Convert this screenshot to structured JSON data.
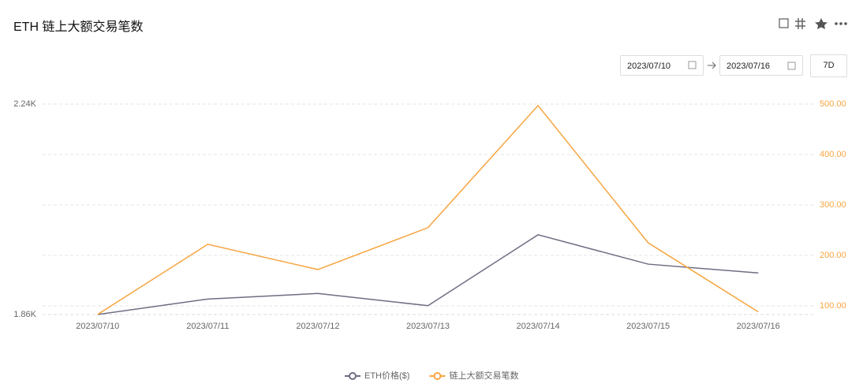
{
  "header": {
    "title": "ETH 链上大额交易笔数"
  },
  "controls": {
    "start_date": "2023/07/10",
    "end_date": "2023/07/16",
    "range_button": "7D"
  },
  "chart_data": {
    "type": "line",
    "categories": [
      "2023/07/10",
      "2023/07/11",
      "2023/07/12",
      "2023/07/13",
      "2023/07/14",
      "2023/07/15",
      "2023/07/16"
    ],
    "series": [
      {
        "name": "ETH价格($)",
        "color": "#6e6d82",
        "values": [
          1860,
          1888,
          1898,
          1876,
          2004,
          1951,
          1935
        ]
      },
      {
        "name": "链上大额交易笔数",
        "color": "#f7a541",
        "axis": "y2",
        "values": [
          83,
          222,
          172,
          255,
          497,
          225,
          88
        ]
      }
    ],
    "ylim": [
      1860,
      2240
    ],
    "yticks": [
      {
        "value": 1860,
        "label": "1.86K"
      },
      {
        "value": 2240,
        "label": "2.24K"
      }
    ],
    "y2lim": [
      82.8,
      500
    ],
    "y2ticks": [
      {
        "value": 100,
        "label": "100.00"
      },
      {
        "value": 200,
        "label": "200.00"
      },
      {
        "value": 300,
        "label": "300.00"
      },
      {
        "value": 400,
        "label": "400.00"
      },
      {
        "value": 500,
        "label": "500.00"
      }
    ],
    "grid": true,
    "legend": "bottom"
  }
}
